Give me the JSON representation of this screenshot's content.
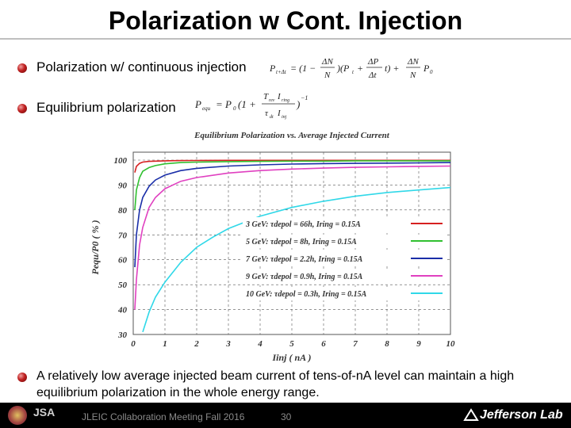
{
  "slide": {
    "title": "Polarization w Cont. Injection",
    "bullets": [
      "Polarization w/ continuous injection",
      "Equilibrium polarization",
      "A relatively low average injected beam current of tens-of-nA level can maintain a high equilibrium polarization in the whole energy range."
    ],
    "formula1": "P(t+Δt) = (1 − ΔN/N)(Pt + (ΔPt/Δt)·t) + (ΔN/N)·P0",
    "formula2": "Pequ = P0 (1 + (Trev·Iring)/(τdt·Iinj))^−1"
  },
  "footer": {
    "meeting": "JLEIC Collaboration Meeting Fall 2016",
    "page": "30",
    "lab": "Jefferson Lab",
    "logo_text": "JSA"
  },
  "chart_data": {
    "type": "line",
    "title": "Equilibrium Polarization vs. Average Injected Current",
    "xlabel": "Iinj ( nA )",
    "ylabel": "Pequ/P0 ( % )",
    "xlim": [
      0,
      10
    ],
    "ylim": [
      30,
      100
    ],
    "xticks": [
      "0",
      "1",
      "2",
      "3",
      "4",
      "5",
      "6",
      "7",
      "8",
      "9",
      "10"
    ],
    "yticks": [
      "30",
      "40",
      "50",
      "60",
      "70",
      "80",
      "90",
      "100"
    ],
    "grid": true,
    "legend_position": "right",
    "series": [
      {
        "name": "3 GeV: τdepol = 66h, Iring = 0.15A",
        "color": "#d62020",
        "x": [
          0.05,
          0.1,
          0.2,
          0.3,
          0.5,
          0.7,
          1,
          1.5,
          2,
          3,
          4,
          5,
          6,
          7,
          8,
          9,
          10
        ],
        "y": [
          95,
          97.5,
          98.7,
          99.2,
          99.5,
          99.6,
          99.7,
          99.8,
          99.85,
          99.9,
          99.9,
          99.9,
          99.9,
          99.9,
          99.9,
          99.9,
          99.9
        ]
      },
      {
        "name": "5 GeV: τdepol = 8h, Iring = 0.15A",
        "color": "#30c030",
        "x": [
          0.05,
          0.1,
          0.2,
          0.3,
          0.5,
          0.7,
          1,
          1.5,
          2,
          3,
          4,
          5,
          6,
          7,
          8,
          9,
          10
        ],
        "y": [
          80,
          88,
          93,
          95.5,
          97,
          97.8,
          98.5,
          99,
          99.2,
          99.4,
          99.5,
          99.6,
          99.6,
          99.7,
          99.7,
          99.7,
          99.7
        ]
      },
      {
        "name": "7 GeV: τdepol = 2.2h, Iring = 0.15A",
        "color": "#1a2ea8",
        "x": [
          0.05,
          0.1,
          0.2,
          0.3,
          0.5,
          0.7,
          1,
          1.5,
          2,
          3,
          4,
          5,
          6,
          7,
          8,
          9,
          10
        ],
        "y": [
          57,
          70,
          80,
          85,
          89.5,
          92,
          94,
          95.8,
          96.7,
          97.6,
          98.1,
          98.4,
          98.6,
          98.7,
          98.8,
          98.9,
          99
        ]
      },
      {
        "name": "9 GeV: τdepol = 0.9h, Iring = 0.15A",
        "color": "#e040c0",
        "x": [
          0.05,
          0.1,
          0.2,
          0.3,
          0.5,
          0.7,
          1,
          1.5,
          2,
          3,
          4,
          5,
          6,
          7,
          8,
          9,
          10
        ],
        "y": [
          40,
          52,
          66,
          73,
          81,
          85,
          88.5,
          91.5,
          93,
          94.8,
          95.8,
          96.4,
          96.8,
          97.1,
          97.3,
          97.5,
          97.6
        ]
      },
      {
        "name": "10 GeV: τdepol = 0.3h, Iring = 0.15A",
        "color": "#30d8e8",
        "x": [
          0.3,
          0.5,
          0.7,
          1,
          1.5,
          2,
          2.5,
          3,
          4,
          5,
          6,
          7,
          8,
          9,
          10
        ],
        "y": [
          31,
          39,
          45,
          51,
          59,
          65,
          69,
          72.5,
          77.5,
          81,
          83.5,
          85.5,
          87,
          88,
          89
        ]
      }
    ]
  }
}
